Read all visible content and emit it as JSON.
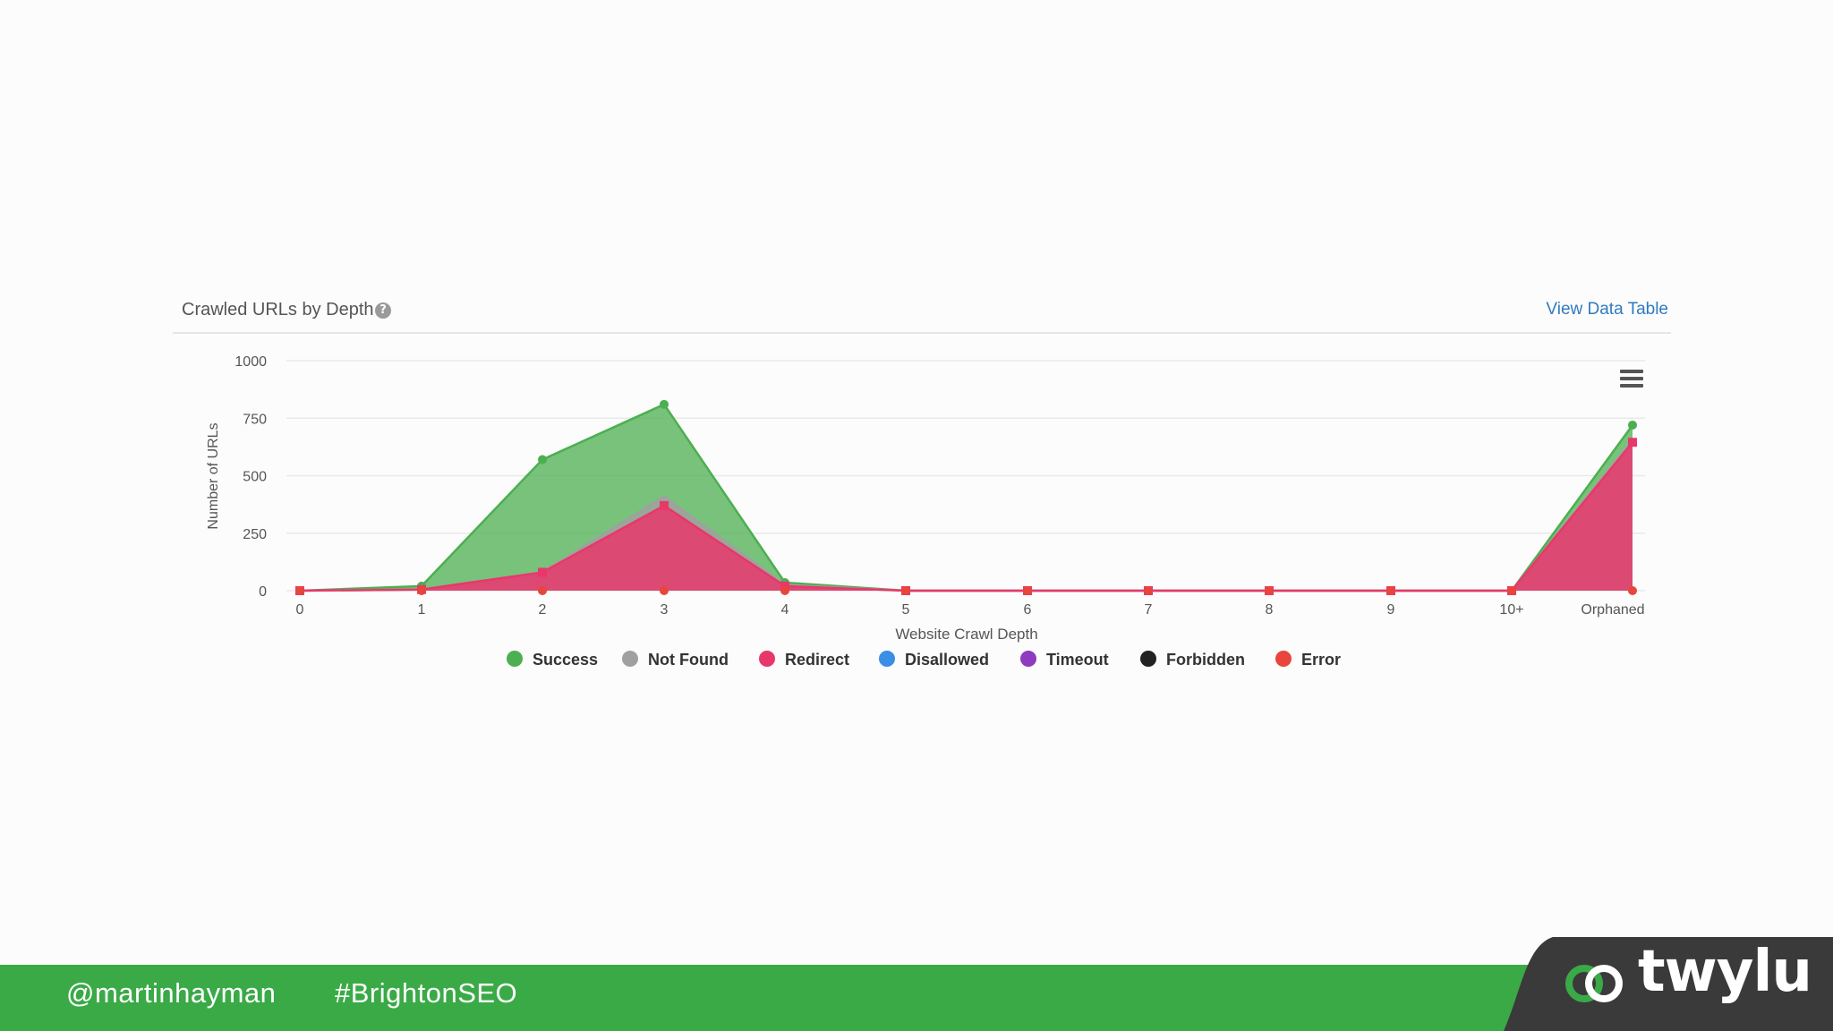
{
  "header": {
    "title": "Crawled URLs by Depth",
    "help_glyph": "?",
    "view_table_label": "View Data Table"
  },
  "chart_data": {
    "type": "area",
    "categories": [
      "0",
      "1",
      "2",
      "3",
      "4",
      "5",
      "6",
      "7",
      "8",
      "9",
      "10+",
      "Orphaned"
    ],
    "xlabel": "Website Crawl Depth",
    "ylabel": "Number of URLs",
    "ylim": [
      0,
      1000
    ],
    "yticks": [
      0,
      250,
      500,
      750,
      1000
    ],
    "grid": true,
    "legend_position": "bottom-center",
    "stacked": true,
    "series": [
      {
        "name": "Success",
        "color": "#4caf50",
        "values": [
          0,
          15,
          490,
          400,
          10,
          0,
          0,
          0,
          0,
          0,
          0,
          65
        ]
      },
      {
        "name": "Not Found",
        "color": "#a0a0a0",
        "values": [
          0,
          0,
          0,
          40,
          5,
          0,
          0,
          0,
          0,
          0,
          0,
          10
        ]
      },
      {
        "name": "Redirect",
        "color": "#e8386b",
        "values": [
          0,
          5,
          80,
          370,
          20,
          0,
          0,
          0,
          0,
          0,
          0,
          645
        ]
      },
      {
        "name": "Disallowed",
        "color": "#3a8ee6",
        "values": [
          0,
          0,
          0,
          0,
          0,
          0,
          0,
          0,
          0,
          0,
          0,
          0
        ]
      },
      {
        "name": "Timeout",
        "color": "#8e3bbf",
        "values": [
          0,
          0,
          0,
          0,
          0,
          0,
          0,
          0,
          0,
          0,
          0,
          0
        ]
      },
      {
        "name": "Forbidden",
        "color": "#222222",
        "values": [
          0,
          0,
          0,
          0,
          0,
          0,
          0,
          0,
          0,
          0,
          0,
          0
        ]
      },
      {
        "name": "Error",
        "color": "#e8453c",
        "values": [
          0,
          0,
          0,
          0,
          0,
          0,
          0,
          0,
          0,
          0,
          0,
          0
        ]
      }
    ]
  },
  "footer": {
    "twitter_handle": "@martinhayman",
    "hashtag": "#BrightonSEO",
    "logo_text": "twylu",
    "background_color": "#3aaa47",
    "logo_panel_color": "#3a3a3a"
  }
}
